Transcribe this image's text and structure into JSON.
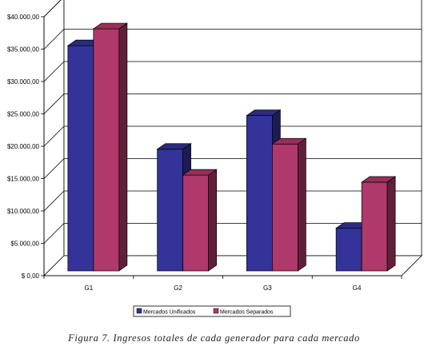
{
  "chart_data": {
    "type": "bar",
    "style": "3d-clustered",
    "categories": [
      "G1",
      "G2",
      "G3",
      "G4"
    ],
    "series": [
      {
        "name": "Mercados Unificados",
        "color": "#333399",
        "values": [
          34800,
          18800,
          24000,
          6600
        ]
      },
      {
        "name": "Mercados Separados",
        "color": "#b0396b",
        "values": [
          37400,
          14800,
          19600,
          13700
        ]
      }
    ],
    "ylim": [
      0,
      40000
    ],
    "yticks": [
      "$ 0,00",
      "$5.000,00",
      "$10.000,00",
      "$15.000,00",
      "$20.000,00",
      "$25.000,00",
      "$30.000,00",
      "$35.000,00",
      "$40.000,00"
    ],
    "grid": true,
    "legend_position": "bottom",
    "title": "",
    "xlabel": "",
    "ylabel": ""
  },
  "caption": "Figura 7. Ingresos totales de cada generador para cada mercado"
}
